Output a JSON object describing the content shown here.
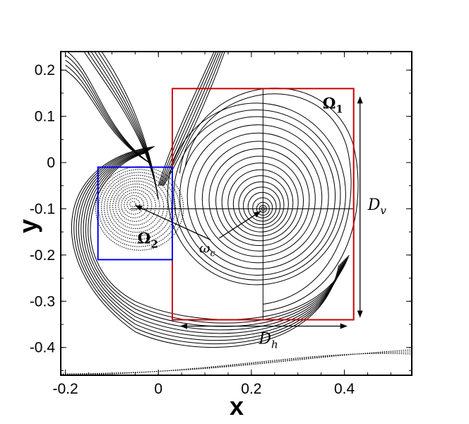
{
  "figure": {
    "x_axis": {
      "label": "x",
      "ticks": [
        "-0.2",
        "0",
        "0.2",
        "0.4"
      ],
      "tick_values": [
        -0.2,
        0,
        0.2,
        0.4
      ],
      "range": [
        -0.21,
        0.545
      ]
    },
    "y_axis": {
      "label": "y",
      "ticks": [
        "0.2",
        "0.1",
        "0",
        "-0.1",
        "-0.2",
        "-0.3",
        "-0.4"
      ],
      "tick_values": [
        0.2,
        0.1,
        0,
        -0.1,
        -0.2,
        -0.3,
        -0.4
      ],
      "range": [
        -0.46,
        0.24
      ]
    },
    "regions": [
      {
        "id": "omega1",
        "label_main": "Ω",
        "label_sub": "1",
        "color": "#cc0000",
        "x_range": [
          0.03,
          0.42
        ],
        "y_range": [
          -0.34,
          0.16
        ]
      },
      {
        "id": "omega2",
        "label_main": "Ω",
        "label_sub": "2",
        "color": "#0000ee",
        "x_range": [
          -0.13,
          0.03
        ],
        "y_range": [
          -0.21,
          -0.01
        ]
      }
    ],
    "vortex_centers": [
      {
        "id": "primary",
        "x": 0.225,
        "y": -0.1
      },
      {
        "id": "secondary",
        "x": -0.055,
        "y": -0.09
      }
    ],
    "annotations": {
      "omega_c": {
        "main": "ω",
        "sub": "c"
      },
      "D_h": {
        "main": "D",
        "sub": "h"
      },
      "D_v": {
        "main": "D",
        "sub": "v"
      }
    },
    "colors": {
      "frame": "#000000",
      "streamline": "#000000",
      "background": "#ffffff"
    }
  }
}
